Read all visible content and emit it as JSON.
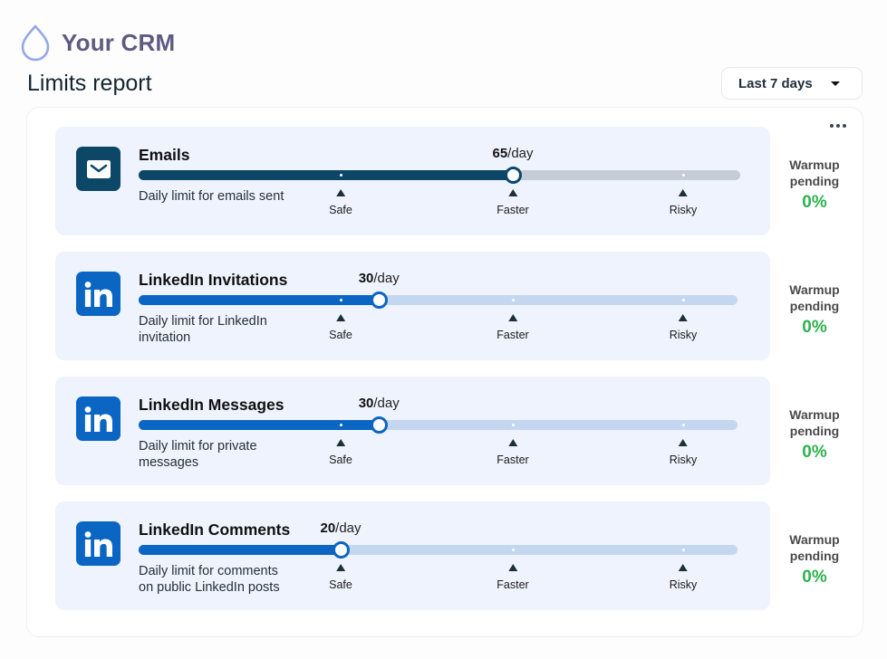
{
  "app": {
    "title": "Your CRM",
    "logo_icon": "droplet-icon"
  },
  "page": {
    "title": "Limits report"
  },
  "date_range": {
    "selected": "Last 7 days"
  },
  "panel": {
    "more_icon": "more-horizontal-icon"
  },
  "scale": {
    "markers": [
      {
        "label": "Safe",
        "value": 20
      },
      {
        "label": "Faster",
        "value": 65
      },
      {
        "label": "Risky",
        "value": 110
      }
    ]
  },
  "limits": [
    {
      "id": "emails",
      "title": "Emails",
      "description": "Daily limit for emails sent",
      "icon": "mail-icon",
      "value": 65,
      "unit": "/day",
      "warmup_label": "Warmup pending",
      "warmup_value": "0%",
      "colors": {
        "icon_bg": "#0d4767",
        "fill": "#0d4767",
        "track": "#c6ccd5"
      }
    },
    {
      "id": "linkedin-invitations",
      "title": "LinkedIn Invitations",
      "description": "Daily limit for LinkedIn invitation",
      "icon": "linkedin-icon",
      "value": 30,
      "unit": "/day",
      "warmup_label": "Warmup pending",
      "warmup_value": "0%",
      "colors": {
        "icon_bg": "#0a66c2",
        "fill": "#0a66c2",
        "track": "#c4d7f0"
      }
    },
    {
      "id": "linkedin-messages",
      "title": "LinkedIn Messages",
      "description": "Daily limit for private messages",
      "icon": "linkedin-icon",
      "value": 30,
      "unit": "/day",
      "warmup_label": "Warmup pending",
      "warmup_value": "0%",
      "colors": {
        "icon_bg": "#0a66c2",
        "fill": "#0a66c2",
        "track": "#c4d7f0"
      }
    },
    {
      "id": "linkedin-comments",
      "title": "LinkedIn Comments",
      "description": "Daily limit for comments on public LinkedIn posts",
      "icon": "linkedin-icon",
      "value": 20,
      "unit": "/day",
      "warmup_label": "Warmup pending",
      "warmup_value": "0%",
      "colors": {
        "icon_bg": "#0a66c2",
        "fill": "#0a66c2",
        "track": "#c4d7f0"
      }
    }
  ]
}
